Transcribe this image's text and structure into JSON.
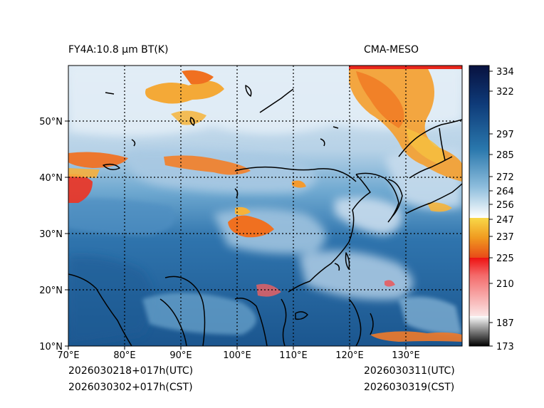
{
  "title_left": "FY4A:10.8 µm BT(K)",
  "title_right": "CMA-MESO",
  "footer": {
    "init_utc": "2026030218+017h(UTC)",
    "init_cst": "2026030302+017h(CST)",
    "valid_utc": "2026030311(UTC)",
    "valid_cst": "2026030319(CST)"
  },
  "axes": {
    "lon_labels": [
      "70°E",
      "80°E",
      "90°E",
      "100°E",
      "110°E",
      "120°E",
      "130°E"
    ],
    "lat_labels": [
      "10°N",
      "20°N",
      "30°N",
      "40°N",
      "50°N"
    ]
  },
  "colorbar": {
    "units": "K",
    "range": [
      173,
      334
    ],
    "ticks": [
      "334",
      "322",
      "297",
      "285",
      "272",
      "264",
      "256",
      "247",
      "237",
      "225",
      "210",
      "187",
      "173"
    ]
  },
  "colors": {
    "warm_ocean": "#1e5a94",
    "clear_land": "#4b8fc0",
    "cool_cloud": "#d6e6f2",
    "cold_cloud_orange": "#f4a020",
    "very_cold_red": "#e6221e"
  }
}
